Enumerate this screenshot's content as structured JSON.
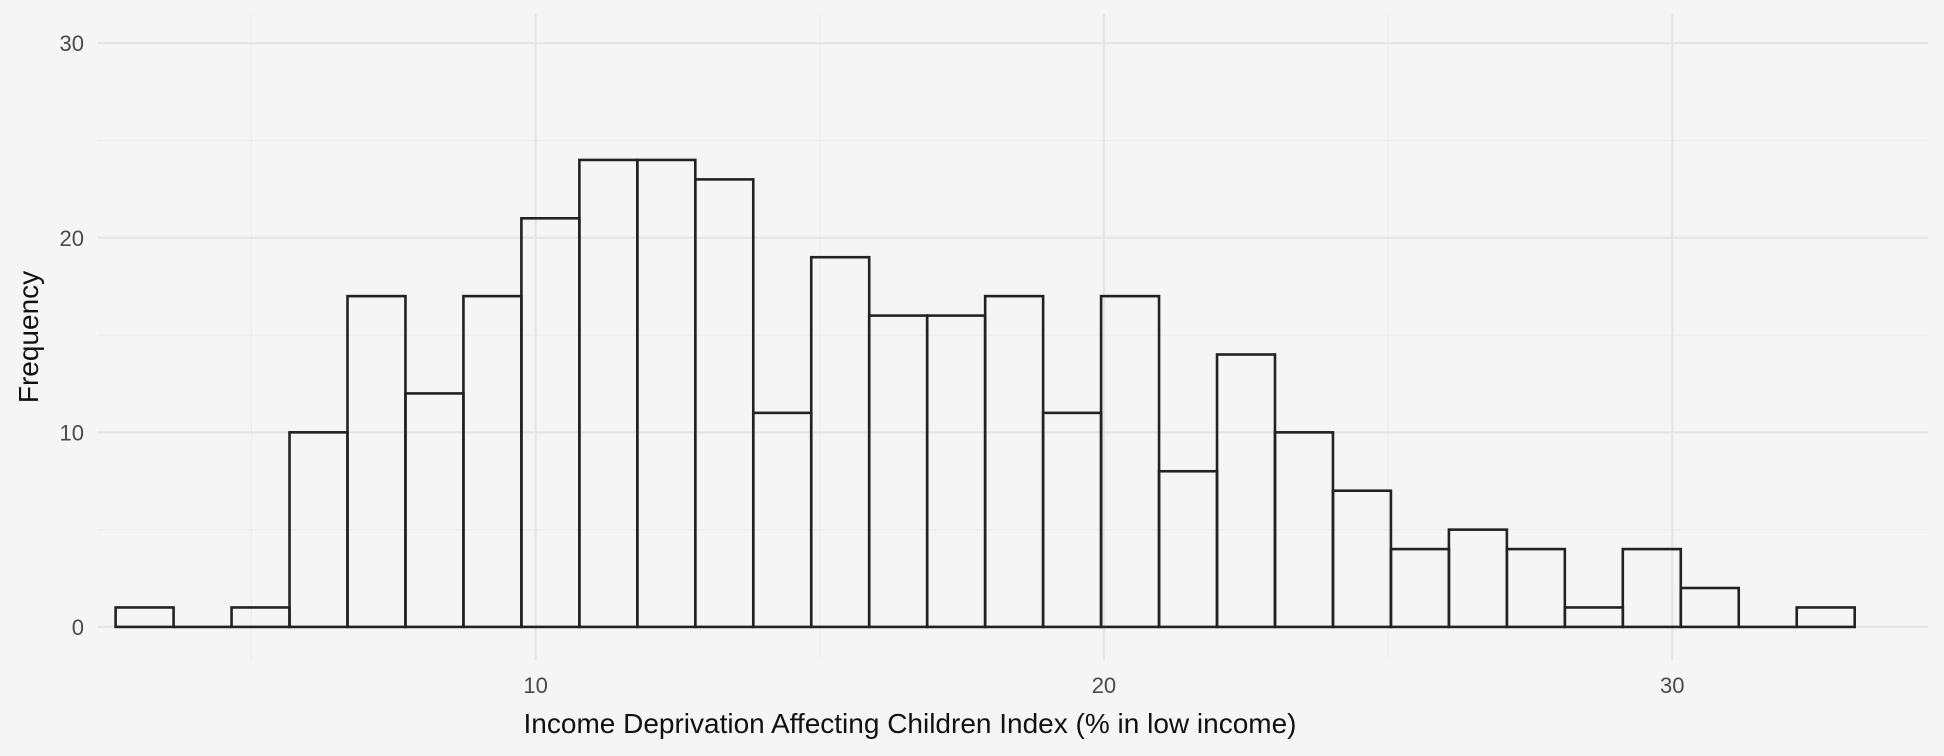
{
  "chart_data": {
    "type": "bar",
    "subtype": "histogram",
    "xlabel": "Income Deprivation Affecting Children Index (% in low income)",
    "ylabel": "Frequency",
    "xlim": [
      2.3,
      34.5
    ],
    "ylim": [
      -1.7,
      31.5
    ],
    "x_ticks": [
      10,
      20,
      30
    ],
    "x_minor_ticks": [
      5,
      15,
      25
    ],
    "y_ticks": [
      0,
      10,
      20,
      30
    ],
    "y_minor_ticks": [
      5,
      15,
      25
    ],
    "bin_width": 1.02,
    "bin_start": 2.61,
    "values": [
      1,
      0,
      1,
      10,
      17,
      12,
      17,
      21,
      24,
      24,
      23,
      11,
      19,
      16,
      16,
      17,
      11,
      17,
      8,
      14,
      10,
      7,
      4,
      5,
      4,
      1,
      4,
      2,
      0,
      1
    ],
    "grid": true,
    "colors": {
      "background": "#f5f5f5",
      "bar_fill": "#f5f5f5",
      "bar_outline": "#222222",
      "grid": "#e4e4e4"
    }
  }
}
